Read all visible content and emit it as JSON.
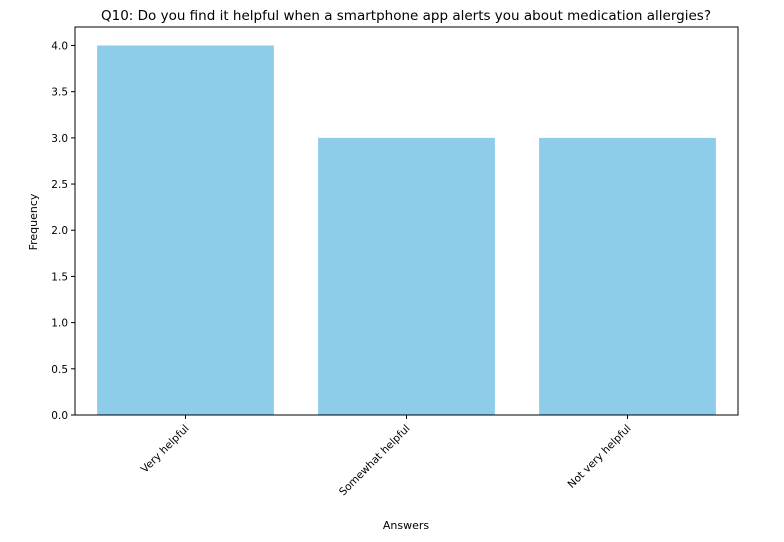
{
  "chart_data": {
    "type": "bar",
    "title": "Q10: Do you find it helpful when a smartphone app alerts you about medication allergies?",
    "xlabel": "Answers",
    "ylabel": "Frequency",
    "categories": [
      "Very helpful",
      "Somewhat helpful",
      "Not very helpful"
    ],
    "values": [
      4,
      3,
      3
    ],
    "ylim": [
      0,
      4.2
    ],
    "yticks": [
      "0.0",
      "0.5",
      "1.0",
      "1.5",
      "2.0",
      "2.5",
      "3.0",
      "3.5",
      "4.0"
    ],
    "grid": false,
    "bar_color": "#8ecdea",
    "x_tick_rotation": 45
  }
}
